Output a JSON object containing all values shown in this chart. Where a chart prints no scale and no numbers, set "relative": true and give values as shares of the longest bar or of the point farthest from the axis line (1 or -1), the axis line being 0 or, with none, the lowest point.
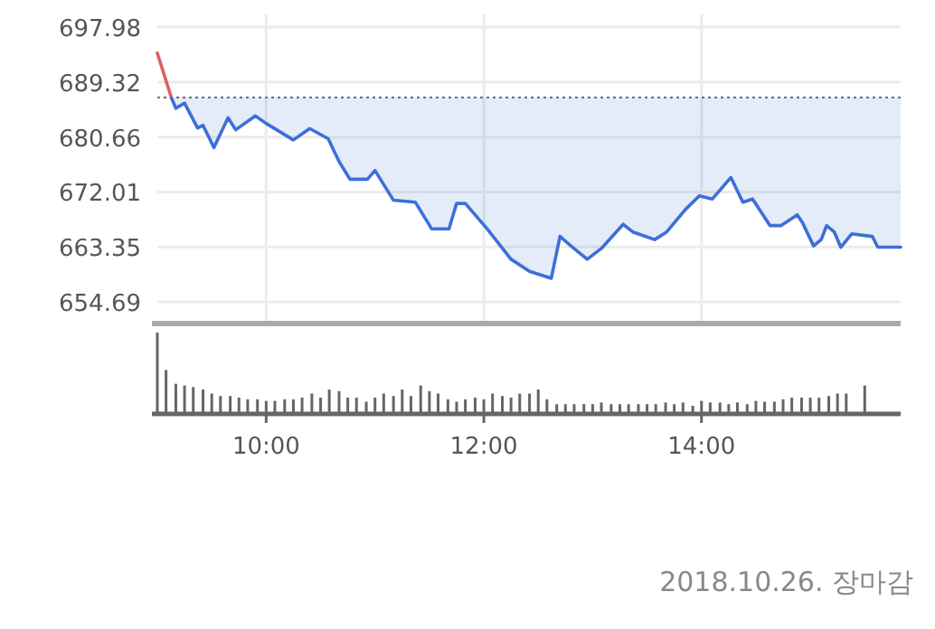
{
  "chart_data": [
    {
      "type": "line",
      "xlim": [
        9,
        15.83
      ],
      "ylim": [
        651.27,
        699.98
      ],
      "yticks": [
        654.69,
        663.35,
        672.01,
        680.66,
        689.32,
        697.98
      ],
      "xticks": [
        {
          "value": 10,
          "label": null
        },
        {
          "value": 12,
          "label": null
        },
        {
          "value": 14,
          "label": null
        }
      ],
      "tick_labels": "y",
      "grid": true,
      "ref_lines": [
        {
          "axis": "y",
          "value": 686.9,
          "label": null,
          "color": "#777777",
          "line_style": "dotted"
        }
      ],
      "series": [
        {
          "type": "line",
          "color": "#e06060",
          "x": [
            9,
            9.13
          ],
          "values": [
            693.9,
            686.8
          ]
        },
        {
          "type": "line",
          "color": "#3d6fd8",
          "lower": [
            686.8,
            685.2,
            686.0,
            682.1,
            682.5,
            679.0,
            683.7,
            681.8,
            684.0,
            682.8,
            680.2,
            682.0,
            680.4,
            676.8,
            674.0,
            674.0,
            675.4,
            670.7,
            670.4,
            666.2,
            666.2,
            670.2,
            670.2,
            666.2,
            661.4,
            659.5,
            658.4,
            665.0,
            663.8,
            661.4,
            663.1,
            666.9,
            665.7,
            664.5,
            665.7,
            669.2,
            671.4,
            670.9,
            674.3,
            670.4,
            670.9,
            666.7,
            666.7,
            668.4,
            667.1,
            663.5,
            664.5,
            666.7,
            665.7,
            663.3,
            665.4,
            665.0,
            663.3,
            663.3
          ],
          "upper": [
            686.9,
            686.9,
            686.9,
            686.9,
            686.9,
            686.9,
            686.9,
            686.9,
            686.9,
            686.9,
            686.9,
            686.9,
            686.9,
            686.9,
            686.9,
            686.9,
            686.9,
            686.9,
            686.9,
            686.9,
            686.9,
            686.9,
            686.9,
            686.9,
            686.9,
            686.9,
            686.9,
            686.9,
            686.9,
            686.9,
            686.9,
            686.9,
            686.9,
            686.9,
            686.9,
            686.9,
            686.9,
            686.9,
            686.9,
            686.9,
            686.9,
            686.9,
            686.9,
            686.9,
            686.9,
            686.9,
            686.9,
            686.9,
            686.9,
            686.9,
            686.9,
            686.9,
            686.9,
            686.9
          ],
          "x": [
            9.13,
            9.17,
            9.25,
            9.37,
            9.42,
            9.52,
            9.65,
            9.72,
            9.9,
            10,
            10.25,
            10.4,
            10.57,
            10.67,
            10.77,
            10.93,
            11,
            11.17,
            11.37,
            11.52,
            11.68,
            11.75,
            11.83,
            12.03,
            12.25,
            12.42,
            12.62,
            12.7,
            12.78,
            12.95,
            13.08,
            13.28,
            13.37,
            13.57,
            13.68,
            13.85,
            13.98,
            14.1,
            14.27,
            14.38,
            14.47,
            14.63,
            14.73,
            14.88,
            14.93,
            15.03,
            15.1,
            15.15,
            15.22,
            15.28,
            15.38,
            15.57,
            15.62,
            15.83
          ],
          "values": [
            686.8,
            685.2,
            686.0,
            682.1,
            682.5,
            679.0,
            683.7,
            681.8,
            684.0,
            682.8,
            680.2,
            682.0,
            680.4,
            676.8,
            674.0,
            674.0,
            675.4,
            670.7,
            670.4,
            666.2,
            666.2,
            670.2,
            670.2,
            666.2,
            661.4,
            659.5,
            658.4,
            665.0,
            663.8,
            661.4,
            663.1,
            666.9,
            665.7,
            664.5,
            665.7,
            669.2,
            671.4,
            670.9,
            674.3,
            670.4,
            670.9,
            666.7,
            666.7,
            668.4,
            667.1,
            663.5,
            664.5,
            666.7,
            665.7,
            663.3,
            665.4,
            665.0,
            663.3,
            663.3
          ]
        }
      ]
    },
    {
      "type": "bar",
      "relative": true,
      "xlim": [
        9,
        15.83
      ],
      "color": "#666666",
      "tick_labels": "x",
      "grid": false,
      "xticks": [
        {
          "value": 10,
          "label": "10:00"
        },
        {
          "value": 12,
          "label": "12:00"
        },
        {
          "value": 14,
          "label": "14:00"
        }
      ],
      "x": [
        9,
        9.08,
        9.17,
        9.25,
        9.33,
        9.42,
        9.5,
        9.58,
        9.67,
        9.75,
        9.83,
        9.92,
        10,
        10.08,
        10.17,
        10.25,
        10.33,
        10.42,
        10.5,
        10.58,
        10.67,
        10.75,
        10.83,
        10.92,
        11,
        11.08,
        11.17,
        11.25,
        11.33,
        11.42,
        11.5,
        11.58,
        11.67,
        11.75,
        11.83,
        11.92,
        12,
        12.08,
        12.17,
        12.25,
        12.33,
        12.42,
        12.5,
        12.58,
        12.67,
        12.75,
        12.83,
        12.92,
        13,
        13.08,
        13.17,
        13.25,
        13.33,
        13.42,
        13.5,
        13.58,
        13.67,
        13.75,
        13.83,
        13.92,
        14,
        14.08,
        14.17,
        14.25,
        14.33,
        14.42,
        14.5,
        14.58,
        14.67,
        14.75,
        14.83,
        14.92,
        15,
        15.08,
        15.17,
        15.25,
        15.33,
        15.5
      ],
      "values": [
        1.0,
        0.54,
        0.37,
        0.35,
        0.33,
        0.3,
        0.25,
        0.22,
        0.22,
        0.2,
        0.18,
        0.18,
        0.16,
        0.16,
        0.18,
        0.18,
        0.2,
        0.25,
        0.2,
        0.3,
        0.28,
        0.2,
        0.2,
        0.15,
        0.2,
        0.25,
        0.22,
        0.3,
        0.22,
        0.35,
        0.28,
        0.25,
        0.18,
        0.15,
        0.18,
        0.2,
        0.18,
        0.25,
        0.22,
        0.2,
        0.25,
        0.25,
        0.3,
        0.18,
        0.12,
        0.12,
        0.12,
        0.12,
        0.12,
        0.14,
        0.12,
        0.12,
        0.12,
        0.12,
        0.12,
        0.12,
        0.14,
        0.12,
        0.14,
        0.1,
        0.16,
        0.14,
        0.14,
        0.12,
        0.14,
        0.12,
        0.16,
        0.15,
        0.15,
        0.18,
        0.2,
        0.2,
        0.2,
        0.2,
        0.22,
        0.25,
        0.25,
        0.35
      ],
      "annotations": [
        "2018.10.26. 장마감"
      ]
    }
  ]
}
